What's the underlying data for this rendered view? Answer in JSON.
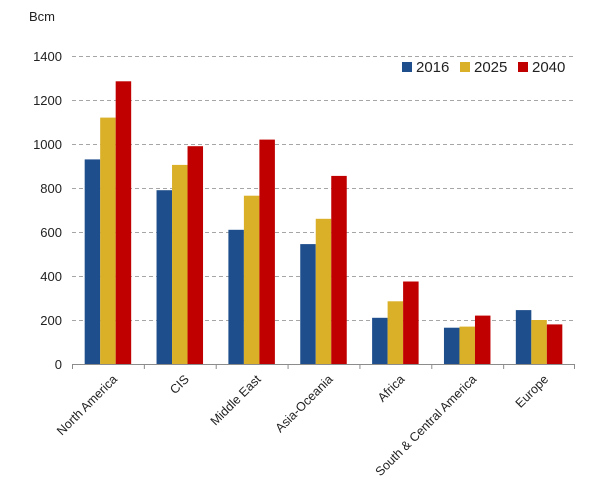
{
  "chart_data": {
    "type": "bar",
    "ylabel": "Bcm",
    "ylim": [
      0,
      1400
    ],
    "yticks": [
      0,
      200,
      400,
      600,
      800,
      1000,
      1200,
      1400
    ],
    "grid": true,
    "legend_position": "top-right",
    "categories": [
      "North America",
      "CIS",
      "Middle East",
      "Asia-Oceania",
      "Africa",
      "South & Central America",
      "Europe"
    ],
    "series": [
      {
        "name": "2016",
        "color": "#1f4e8c",
        "values": [
          930,
          790,
          610,
          545,
          210,
          165,
          245
        ]
      },
      {
        "name": "2025",
        "color": "#d9b028",
        "values": [
          1120,
          905,
          765,
          660,
          285,
          170,
          200
        ]
      },
      {
        "name": "2040",
        "color": "#c00000",
        "values": [
          1285,
          990,
          1020,
          855,
          375,
          220,
          180
        ]
      }
    ]
  }
}
